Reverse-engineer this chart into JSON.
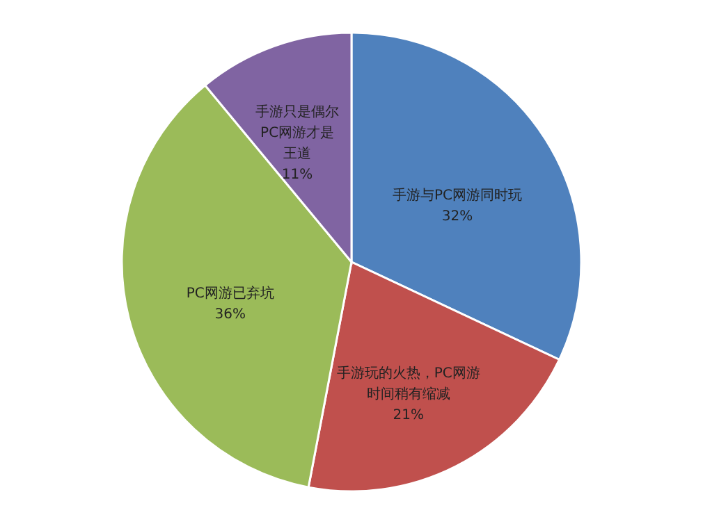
{
  "chart_data": {
    "type": "pie",
    "categories": [
      "手游与PC网游同时玩",
      "手游玩的火热，PC网游时间稍有缩减",
      "PC网游已弃坑",
      "手游只是偶尔PC网游才是王道"
    ],
    "values": [
      32,
      21,
      36,
      11
    ],
    "colors": [
      "#4f81bd",
      "#c0504d",
      "#9bbb59",
      "#8064a2"
    ],
    "value_labels": [
      "32%",
      "21%",
      "36%",
      "11%"
    ],
    "legend": false
  }
}
